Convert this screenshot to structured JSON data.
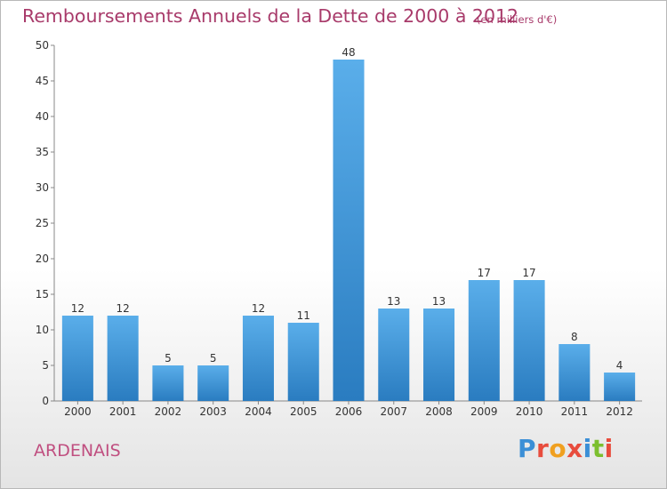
{
  "header": {
    "title": "Remboursements Annuels de la Dette de 2000 à 2012",
    "unit_note": "(en milliers d'€)"
  },
  "footer": {
    "location": "ARDENAIS",
    "logo_text": "Proxiti",
    "logo_colors": [
      "#3b8fd6",
      "#e84c3d",
      "#f0a020",
      "#e84c3d",
      "#3b8fd6",
      "#7cbf2e",
      "#e84c3d"
    ]
  },
  "chart_data": {
    "type": "bar",
    "categories": [
      "2000",
      "2001",
      "2002",
      "2003",
      "2004",
      "2005",
      "2006",
      "2007",
      "2008",
      "2009",
      "2010",
      "2011",
      "2012"
    ],
    "values": [
      12,
      12,
      5,
      5,
      12,
      11,
      48,
      13,
      13,
      17,
      17,
      8,
      4
    ],
    "data_labels": [
      "12",
      "12",
      "5",
      "5",
      "12",
      "11",
      "48",
      "13",
      "13",
      "17",
      "17",
      "8",
      "4"
    ],
    "ylim": [
      0,
      50
    ],
    "yticks": [
      0,
      5,
      10,
      15,
      20,
      25,
      30,
      35,
      40,
      45,
      50
    ],
    "grid": false,
    "bar_color_light": "#5aaeea",
    "bar_color_dark": "#2a7cc0"
  }
}
